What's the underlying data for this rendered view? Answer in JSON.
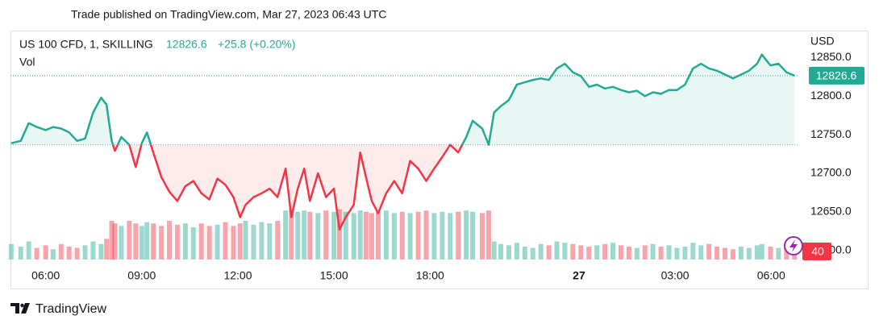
{
  "published": "Trade published on TradingView.com, Mar 27, 2023 06:43 UTC",
  "brand": "TradingView",
  "chart_data": {
    "type": "baseline",
    "y_unit": "USD",
    "change_label": "+25.8 (+0.20%)",
    "baseline": 12737,
    "session_break": [
      20,
      21.35
    ],
    "xlim": [
      4.9,
      30.85
    ],
    "xticks": [
      {
        "value": 6,
        "label": "06:00"
      },
      {
        "value": 9,
        "label": "09:00"
      },
      {
        "value": 12,
        "label": "12:00"
      },
      {
        "value": 15,
        "label": "15:00"
      },
      {
        "value": 18,
        "label": "18:00"
      },
      {
        "value": 24,
        "label": "27"
      },
      {
        "value": 27,
        "label": "03:00"
      },
      {
        "value": 30,
        "label": "06:00"
      }
    ],
    "ylim": [
      12585,
      12885
    ],
    "yticks": [
      {
        "value": 12600,
        "label": "12600.0"
      },
      {
        "value": 12650,
        "label": "12650.0"
      },
      {
        "value": 12700,
        "label": "12700.0"
      },
      {
        "value": 12750,
        "label": "12750.0"
      },
      {
        "value": 12800,
        "label": "12800.0"
      },
      {
        "value": 12850,
        "label": "12850.0"
      }
    ],
    "grid": false,
    "x": [
      4.92,
      5.22,
      5.47,
      5.72,
      6,
      6.23,
      6.48,
      6.73,
      6.98,
      7.23,
      7.48,
      7.73,
      7.9,
      8.06,
      8.16,
      8.36,
      8.61,
      8.81,
      9,
      9.16,
      9.36,
      9.61,
      9.86,
      10.11,
      10.36,
      10.61,
      10.86,
      11.11,
      11.36,
      11.61,
      11.86,
      12.07,
      12.24,
      12.49,
      12.74,
      12.99,
      13.24,
      13.49,
      13.67,
      13.87,
      14.07,
      14.25,
      14.5,
      14.75,
      15,
      15.17,
      15.37,
      15.62,
      15.82,
      16,
      16.18,
      16.38,
      16.63,
      16.88,
      17.13,
      17.38,
      17.63,
      17.88,
      18.13,
      18.38,
      18.63,
      18.88,
      19.13,
      19.33,
      19.63,
      19.83,
      21.35,
      21.56,
      21.81,
      22.06,
      22.31,
      22.56,
      22.81,
      23.06,
      23.31,
      23.56,
      23.81,
      24.06,
      24.31,
      24.56,
      24.81,
      25.06,
      25.31,
      25.56,
      25.81,
      26.06,
      26.31,
      26.56,
      26.81,
      27.06,
      27.31,
      27.56,
      27.81,
      28.06,
      28.31,
      28.56,
      28.81,
      29.06,
      29.31,
      29.56,
      29.71,
      29.98,
      30.23,
      30.48,
      30.73
    ],
    "series": [
      {
        "name": "US 100 CFD, 1, SKILLING",
        "color": "#22ab94",
        "down_color": "#f23645",
        "values": [
          12739,
          12742,
          12765,
          12760,
          12756,
          12760,
          12758,
          12753,
          12742,
          12745,
          12779,
          12798,
          12789,
          12742,
          12729,
          12747,
          12737,
          12708,
          12739,
          12753,
          12727,
          12695,
          12676,
          12664,
          12683,
          12690,
          12674,
          12666,
          12693,
          12685,
          12669,
          12643,
          12659,
          12669,
          12674,
          12680,
          12669,
          12706,
          12643,
          12680,
          12706,
          12664,
          12700,
          12669,
          12680,
          12627,
          12643,
          12659,
          12727,
          12695,
          12664,
          12648,
          12674,
          12690,
          12674,
          12716,
          12706,
          12690,
          12706,
          12721,
          12737,
          12727,
          12747,
          12768,
          12758,
          12737,
          12779,
          12787,
          12795,
          12815,
          12818,
          12821,
          12823,
          12821,
          12836,
          12842,
          12831,
          12826,
          12812,
          12815,
          12810,
          12812,
          12808,
          12805,
          12807,
          12800,
          12805,
          12803,
          12808,
          12808,
          12815,
          12836,
          12842,
          12836,
          12833,
          12828,
          12823,
          12828,
          12833,
          12842,
          12854,
          12840,
          12842,
          12831,
          12826.6
        ]
      }
    ],
    "volume": {
      "name": "Vol",
      "up_color": "#22ab94",
      "down_color": "#f23645",
      "ylim": [
        0,
        200
      ],
      "values": [
        60,
        50,
        70,
        45,
        55,
        40,
        60,
        50,
        45,
        55,
        70,
        60,
        80,
        150,
        140,
        130,
        150,
        140,
        130,
        145,
        140,
        130,
        150,
        135,
        140,
        125,
        140,
        130,
        135,
        145,
        130,
        140,
        150,
        135,
        145,
        140,
        150,
        190,
        195,
        185,
        190,
        185,
        180,
        190,
        185,
        195,
        185,
        180,
        190,
        185,
        180,
        185,
        190,
        180,
        185,
        180,
        185,
        190,
        180,
        185,
        180,
        185,
        190,
        185,
        180,
        190,
        70,
        60,
        55,
        65,
        50,
        45,
        60,
        55,
        70,
        65,
        60,
        55,
        50,
        55,
        60,
        65,
        55,
        50,
        45,
        55,
        60,
        50,
        55,
        45,
        50,
        65,
        55,
        60,
        50,
        45,
        40,
        50,
        45,
        55,
        60,
        50,
        45,
        55,
        40
      ]
    }
  }
}
